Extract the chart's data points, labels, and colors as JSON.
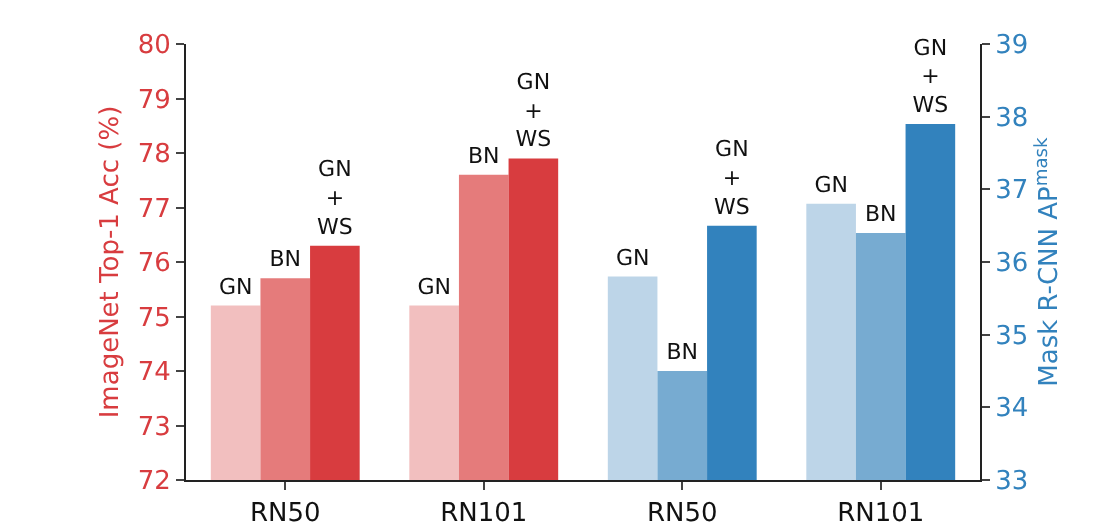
{
  "chart_data": {
    "type": "bar",
    "categories": [
      "RN50",
      "RN101",
      "RN50",
      "RN101"
    ],
    "ylabel": "ImageNet Top-1 Acc (%)",
    "y2label": "Mask R-CNN AP$^{mask}$",
    "ylim": [
      72,
      80
    ],
    "yticks": [
      72,
      73,
      74,
      75,
      76,
      77,
      78,
      79,
      80
    ],
    "y2lim": [
      33,
      39
    ],
    "y2ticks": [
      33,
      34,
      35,
      36,
      37,
      38,
      39
    ],
    "grid": false,
    "series": [
      {
        "color": "#f2bfbf",
        "values": [
          75.2,
          75.2,
          null,
          null
        ],
        "value_labels": [
          "GN",
          "GN",
          null,
          null
        ]
      },
      {
        "color": "#e57b7b",
        "values": [
          75.7,
          77.6,
          null,
          null
        ],
        "value_labels": [
          "BN",
          "BN",
          null,
          null
        ]
      },
      {
        "color": "#d83c3f",
        "values": [
          76.3,
          77.9,
          null,
          null
        ],
        "value_labels": [
          "GN\n+\nWS",
          "GN\n+\nWS",
          null,
          null
        ]
      },
      {
        "color": "#bdd5e8",
        "axis": "y2",
        "values": [
          null,
          null,
          35.8,
          36.8
        ],
        "value_labels": [
          null,
          null,
          "GN",
          "GN"
        ]
      },
      {
        "color": "#77abd1",
        "axis": "y2",
        "values": [
          null,
          null,
          34.5,
          36.4
        ],
        "value_labels": [
          null,
          null,
          "BN",
          "BN"
        ]
      },
      {
        "color": "#3282bd",
        "axis": "y2",
        "values": [
          null,
          null,
          36.5,
          37.9
        ],
        "value_labels": [
          null,
          null,
          "GN\n+\nWS",
          "GN\n+\nWS"
        ]
      }
    ]
  }
}
